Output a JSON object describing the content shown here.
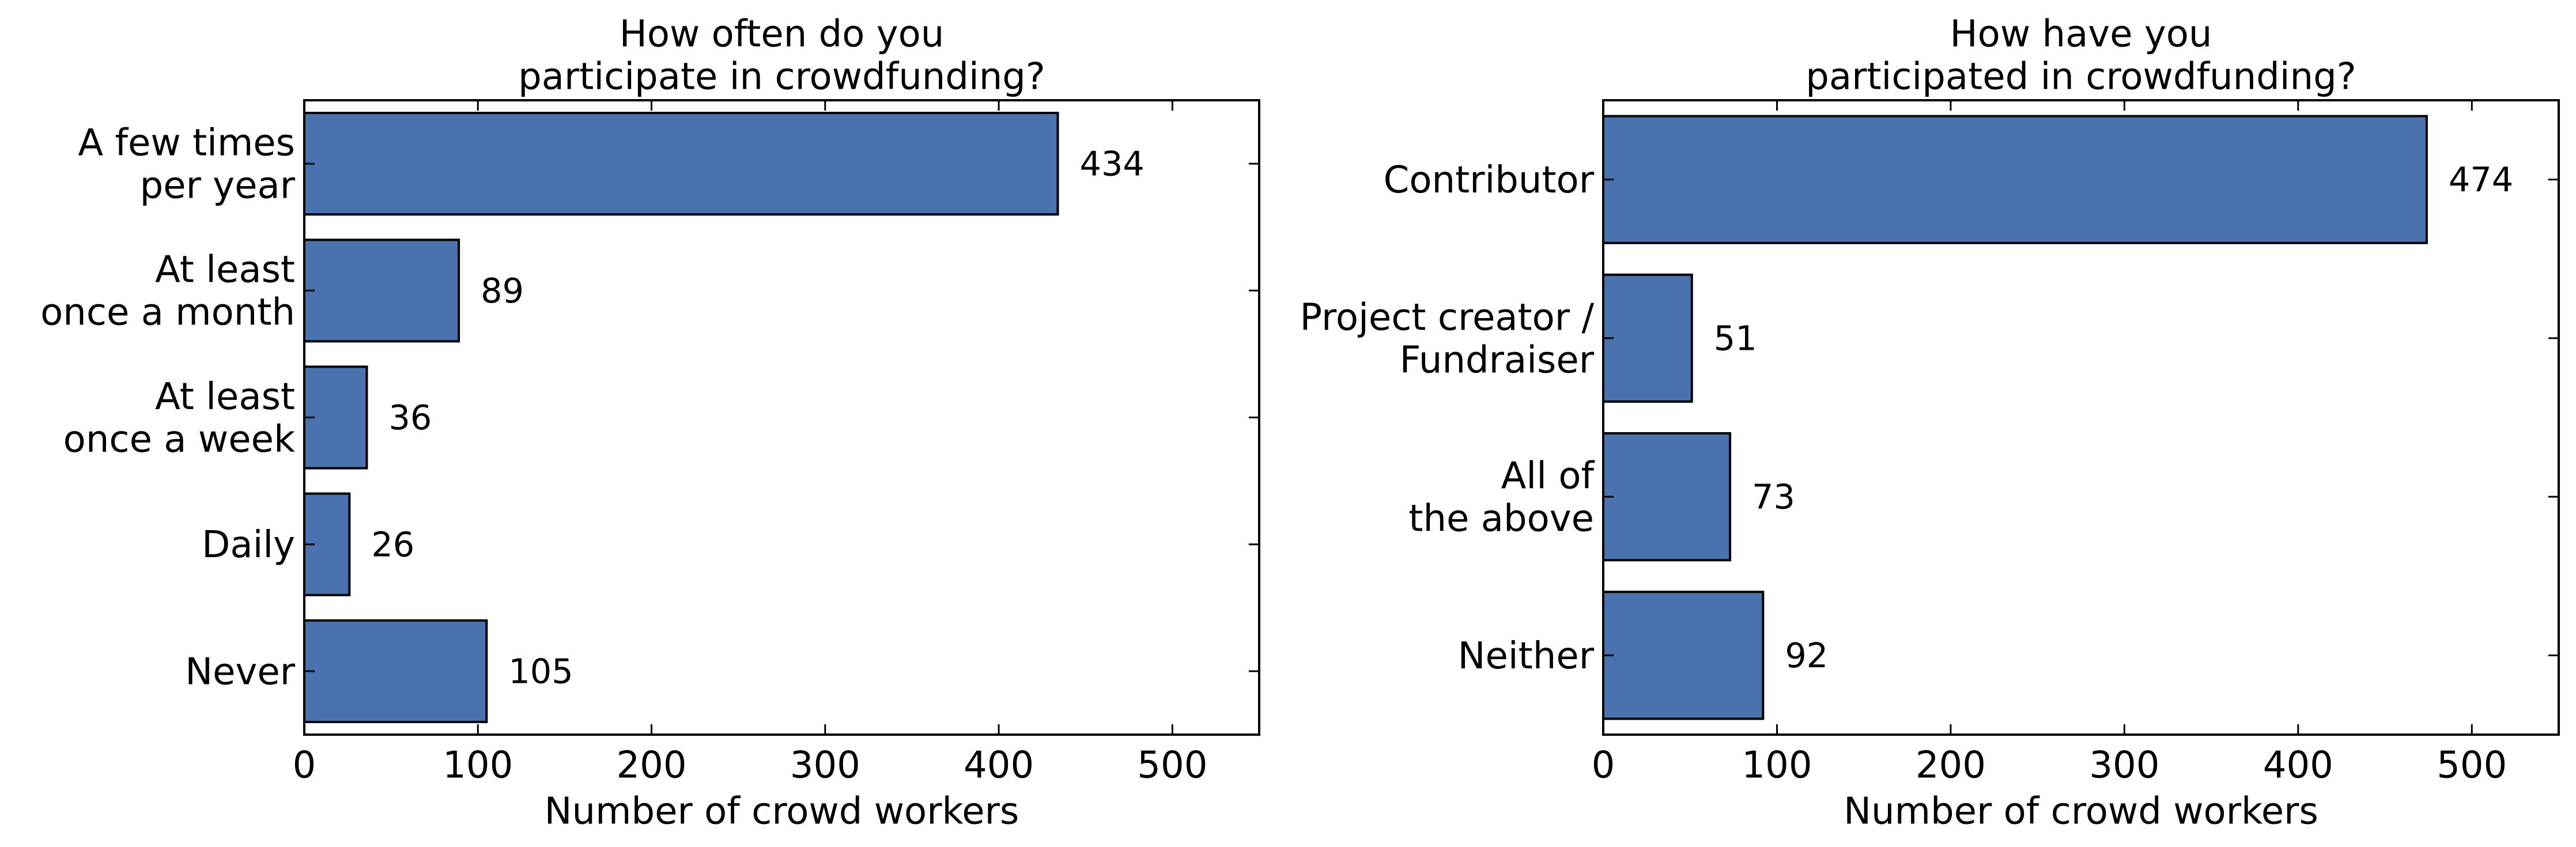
{
  "chart_data": [
    {
      "type": "bar",
      "orientation": "horizontal",
      "title": "How often do you\nparticipate in crowdfunding?",
      "xlabel": "Number of crowd workers",
      "ylabel": "",
      "categories": [
        "A few times\nper year",
        "At least\nonce a month",
        "At least\nonce a week",
        "Daily",
        "Never"
      ],
      "values": [
        434,
        89,
        36,
        26,
        105
      ],
      "data_labels": [
        "434",
        "89",
        "36",
        "26",
        "105"
      ],
      "xlim": [
        0,
        550
      ],
      "xticks": [
        0,
        100,
        200,
        300,
        400,
        500
      ],
      "xtick_labels": [
        "0",
        "100",
        "200",
        "300",
        "400",
        "500"
      ],
      "grid": false,
      "bar_color": "#4a72ae",
      "edge_color": "#000000"
    },
    {
      "type": "bar",
      "orientation": "horizontal",
      "title": "How have you\nparticipated in crowdfunding?",
      "xlabel": "Number of crowd workers",
      "ylabel": "",
      "categories": [
        "Contributor",
        "Project creator /\nFundraiser",
        "All of\nthe above",
        "Neither"
      ],
      "values": [
        474,
        51,
        73,
        92
      ],
      "data_labels": [
        "474",
        "51",
        "73",
        "92"
      ],
      "xlim": [
        0,
        550
      ],
      "xticks": [
        0,
        100,
        200,
        300,
        400,
        500
      ],
      "xtick_labels": [
        "0",
        "100",
        "200",
        "300",
        "400",
        "500"
      ],
      "grid": false,
      "bar_color": "#4a72ae",
      "edge_color": "#000000"
    }
  ]
}
